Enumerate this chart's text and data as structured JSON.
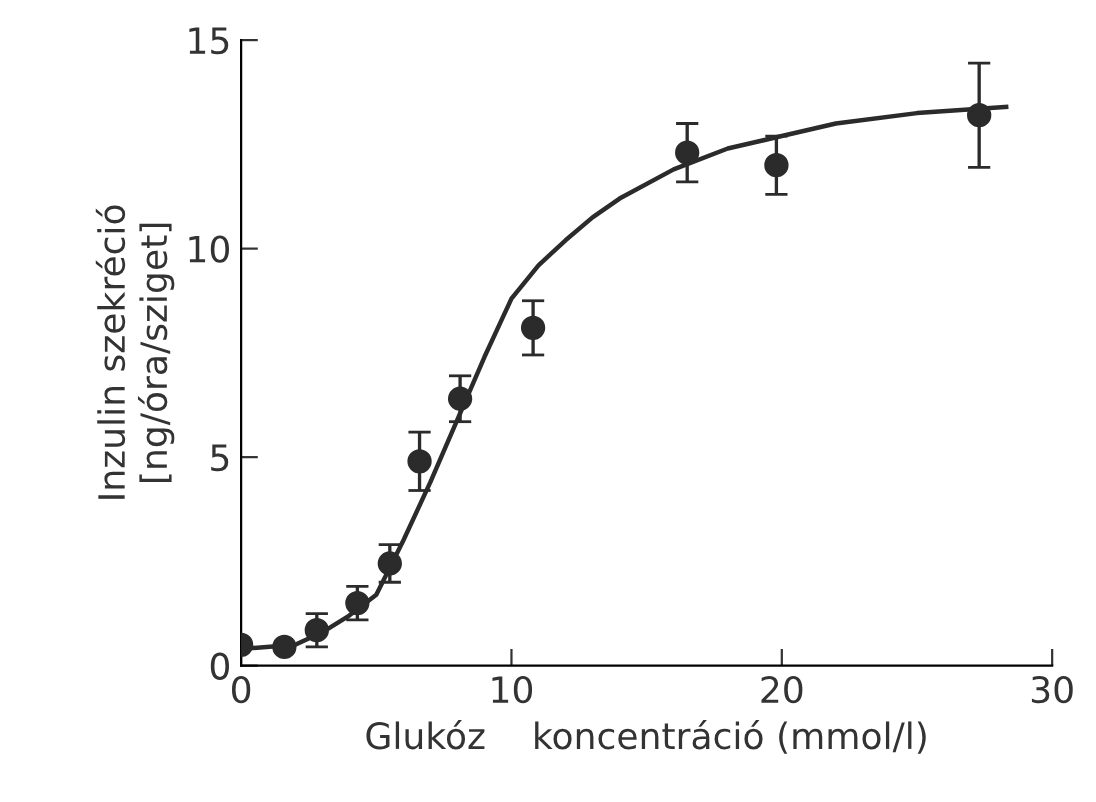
{
  "chart_data": {
    "type": "scatter",
    "xlabel": "Glukóz    koncentráció (mmol/l)",
    "ylabel": "Inzulin szekréció\n[ng/óra/sziget]",
    "xlim": [
      0,
      30
    ],
    "ylim": [
      0,
      15
    ],
    "xticks": [
      0,
      10,
      20,
      30
    ],
    "yticks": [
      0,
      5,
      10,
      15
    ],
    "series": [
      {
        "color": "#2b2b2b",
        "marker": "circle",
        "x": [
          0,
          1.6,
          2.8,
          4.3,
          5.5,
          6.6,
          8.1,
          10.8,
          16.5,
          19.8,
          27.3
        ],
        "values": [
          0.5,
          0.45,
          0.85,
          1.5,
          2.45,
          4.9,
          6.4,
          8.1,
          12.3,
          12.0,
          13.2
        ],
        "errors": [
          null,
          null,
          0.4,
          0.4,
          0.45,
          0.7,
          0.55,
          0.65,
          0.7,
          0.7,
          1.25
        ]
      },
      {
        "type": "line",
        "color": "#2b2b2b",
        "line_style": "solid",
        "x": [
          0,
          2,
          3,
          4,
          5,
          6,
          7,
          8,
          9,
          10,
          11,
          12,
          13,
          14,
          16,
          18,
          20,
          22,
          25,
          28.3
        ],
        "values": [
          0.4,
          0.5,
          0.8,
          1.2,
          1.7,
          3.0,
          4.4,
          5.9,
          7.4,
          8.8,
          9.6,
          10.2,
          10.75,
          11.2,
          11.9,
          12.4,
          12.7,
          13.0,
          13.25,
          13.4
        ]
      }
    ]
  }
}
